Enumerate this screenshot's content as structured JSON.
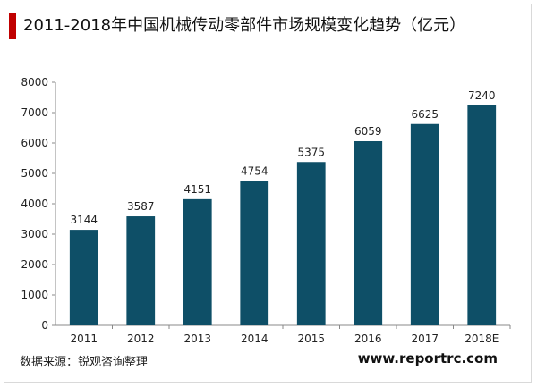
{
  "header": {
    "title": "2011-2018年中国机械传动零部件市场规模变化趋势（亿元）"
  },
  "footer": {
    "source": "数据来源：锐观咨询整理",
    "website": "www.reportrc.com"
  },
  "colors": {
    "bar": "#0e4f67",
    "accent": "#c00000"
  },
  "chart_data": {
    "type": "bar",
    "title": "2011-2018年中国机械传动零部件市场规模变化趋势（亿元）",
    "categories": [
      "2011",
      "2012",
      "2013",
      "2014",
      "2015",
      "2016",
      "2017",
      "2018E"
    ],
    "values": [
      3144,
      3587,
      4151,
      4754,
      5375,
      6059,
      6625,
      7240
    ],
    "data_labels": [
      "3144",
      "3587",
      "4151",
      "4754",
      "5375",
      "6059",
      "6625",
      "7240"
    ],
    "ylim": [
      0,
      8000
    ],
    "yticks": [
      "0",
      "1000",
      "2000",
      "3000",
      "4000",
      "5000",
      "6000",
      "7000",
      "8000"
    ],
    "xlabel": "",
    "ylabel": "",
    "grid": false,
    "legend": "none"
  }
}
